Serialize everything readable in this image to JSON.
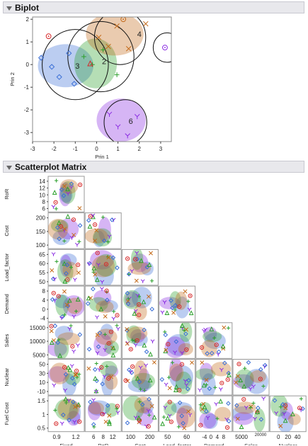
{
  "sections": {
    "biplot_title": "Biplot",
    "matrix_title": "Scatterplot Matrix"
  },
  "colors": {
    "c1": "#8a2be2",
    "c2": "#2ca02c",
    "c3": "#3b6fd6",
    "c4": "#c46a1a",
    "c5": "#d62728",
    "c6": "#8a2be2"
  },
  "chart_data": [
    {
      "type": "scatter",
      "title": "",
      "xlabel": "Prin 1",
      "ylabel": "Prin 2",
      "xlim": [
        -3,
        3.5
      ],
      "ylim": [
        -3.4,
        2.1
      ],
      "x_ticks": [
        "-3",
        "-2",
        "-1",
        "0",
        "1",
        "2",
        "3"
      ],
      "y_ticks": [
        "2",
        "1",
        "0",
        "-1",
        "-2",
        "-3"
      ],
      "cluster_labels": [
        {
          "id": "3",
          "x": -0.9,
          "y": -0.05
        },
        {
          "id": "2",
          "x": 0.35,
          "y": 0.15
        },
        {
          "id": "4",
          "x": 2.0,
          "y": 1.35
        },
        {
          "id": "6",
          "x": 1.6,
          "y": -2.5
        }
      ],
      "ellipses": [
        {
          "cluster": "3",
          "cx": -1.45,
          "cy": -0.05,
          "rx": 1.3,
          "ry": 0.95
        },
        {
          "cluster": "2",
          "cx": -0.05,
          "cy": 0.05,
          "rx": 1.0,
          "ry": 1.1
        },
        {
          "cluster": "4",
          "cx": 0.85,
          "cy": 1.35,
          "rx": 1.35,
          "ry": 0.95
        },
        {
          "cluster": "6",
          "cx": 1.15,
          "cy": -2.45,
          "rx": 1.15,
          "ry": 0.95
        }
      ],
      "circles": [
        {
          "cx": -1.0,
          "cy": 0.0,
          "r": 1.55
        },
        {
          "cx": 0.2,
          "cy": 0.35,
          "r": 1.55
        },
        {
          "cx": 1.1,
          "cy": 1.2,
          "r": 1.2
        },
        {
          "cx": 1.35,
          "cy": -2.55,
          "r": 1.0
        },
        {
          "cx": 3.3,
          "cy": 0.75,
          "r": 0.65
        }
      ],
      "points": [
        {
          "c": 3,
          "m": "diamond",
          "x": -2.6,
          "y": 0.3
        },
        {
          "c": 3,
          "m": "diamond",
          "x": -2.1,
          "y": -0.1
        },
        {
          "c": 3,
          "m": "diamond",
          "x": -1.75,
          "y": -0.55
        },
        {
          "c": 3,
          "m": "diamond",
          "x": -1.3,
          "y": 0.5
        },
        {
          "c": 3,
          "m": "diamond",
          "x": -1.05,
          "y": -0.85
        },
        {
          "c": 2,
          "m": "plus",
          "x": -0.6,
          "y": 0.35
        },
        {
          "c": 2,
          "m": "plus",
          "x": -0.2,
          "y": 0.0
        },
        {
          "c": 2,
          "m": "plus",
          "x": 0.3,
          "y": 0.65
        },
        {
          "c": 2,
          "m": "plus",
          "x": 0.95,
          "y": -0.45
        },
        {
          "c": 4,
          "m": "x",
          "x": 0.1,
          "y": 1.2
        },
        {
          "c": 4,
          "m": "x",
          "x": 0.55,
          "y": 0.8
        },
        {
          "c": 4,
          "m": "x",
          "x": 0.95,
          "y": 1.7
        },
        {
          "c": 4,
          "m": "x",
          "x": 1.5,
          "y": 0.7
        },
        {
          "c": 4,
          "m": "x",
          "x": 2.3,
          "y": 1.8
        },
        {
          "c": 6,
          "m": "y",
          "x": 0.6,
          "y": -2.2
        },
        {
          "c": 6,
          "m": "y",
          "x": 1.0,
          "y": -2.75
        },
        {
          "c": 6,
          "m": "y",
          "x": 1.45,
          "y": -3.15
        },
        {
          "c": 6,
          "m": "y",
          "x": 1.9,
          "y": -2.3
        },
        {
          "c": 1,
          "m": "circle",
          "x": 3.2,
          "y": 0.75
        },
        {
          "c": 5,
          "m": "circle",
          "x": -2.25,
          "y": 1.25
        },
        {
          "c": 5,
          "m": "triangle",
          "x": -0.3,
          "y": 0.05
        },
        {
          "c": 4,
          "m": "circle",
          "x": 1.25,
          "y": 2.0
        }
      ]
    },
    {
      "type": "scatter",
      "title": "",
      "variables": [
        {
          "name": "Fixed",
          "ticks": [
            "0.9",
            "1.2"
          ]
        },
        {
          "name": "RoR",
          "ticks": [
            "6",
            "8",
            "12"
          ]
        },
        {
          "name": "Cost",
          "ticks": [
            "100",
            "200"
          ]
        },
        {
          "name": "Load_factor",
          "ticks": [
            "50",
            "60"
          ]
        },
        {
          "name": "Demand",
          "ticks": [
            "-4",
            "0",
            "4",
            "8"
          ]
        },
        {
          "name": "Sales",
          "ticks": [
            "5000",
            "20000"
          ]
        },
        {
          "name": "Nuclear",
          "ticks": [
            "0",
            "20",
            "40"
          ]
        }
      ],
      "row_variables": [
        {
          "name": "RoR",
          "ticks": [
            "14",
            "12",
            "10",
            "8",
            "6"
          ]
        },
        {
          "name": "Cost",
          "ticks": [
            "200",
            "150",
            "100"
          ]
        },
        {
          "name": "Load_factor",
          "ticks": [
            "65",
            "60",
            "55",
            "50"
          ]
        },
        {
          "name": "Demand",
          "ticks": [
            "8",
            "4",
            "0",
            "-4"
          ]
        },
        {
          "name": "Sales",
          "ticks": [
            "15000",
            "10000",
            "5000"
          ]
        },
        {
          "name": "Nuclear",
          "ticks": [
            "50",
            "30",
            "10",
            "-10"
          ]
        },
        {
          "name": "Fuel Cost",
          "ticks": [
            "1.5",
            "1",
            "0.5"
          ]
        }
      ]
    }
  ]
}
